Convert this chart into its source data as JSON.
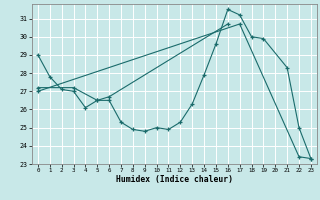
{
  "xlabel": "Humidex (Indice chaleur)",
  "xlim": [
    -0.5,
    23.5
  ],
  "ylim": [
    23,
    31.8
  ],
  "yticks": [
    23,
    24,
    25,
    26,
    27,
    28,
    29,
    30,
    31
  ],
  "xticks": [
    0,
    1,
    2,
    3,
    4,
    5,
    6,
    7,
    8,
    9,
    10,
    11,
    12,
    13,
    14,
    15,
    16,
    17,
    18,
    19,
    20,
    21,
    22,
    23
  ],
  "background_color": "#c8e8e8",
  "grid_color": "#ffffff",
  "line_color": "#1a6b6b",
  "series": [
    {
      "x": [
        0,
        1,
        2,
        3,
        4,
        5,
        6,
        7,
        8,
        9,
        10,
        11,
        12,
        13,
        14,
        15,
        16,
        17,
        18,
        19,
        21,
        22,
        23
      ],
      "y": [
        29.0,
        27.8,
        27.1,
        27.0,
        26.1,
        26.5,
        26.5,
        25.3,
        24.9,
        24.8,
        25.0,
        24.9,
        25.3,
        26.3,
        27.9,
        29.6,
        31.5,
        31.2,
        30.0,
        29.9,
        28.3,
        25.0,
        23.3
      ]
    },
    {
      "comment": "second curve connecting 0->3->5->6->16",
      "x": [
        0,
        3,
        5,
        6,
        16
      ],
      "y": [
        27.2,
        27.2,
        26.5,
        26.7,
        30.7
      ]
    },
    {
      "x": [
        0,
        17,
        22,
        23
      ],
      "y": [
        27.0,
        30.7,
        23.4,
        23.3
      ]
    }
  ]
}
